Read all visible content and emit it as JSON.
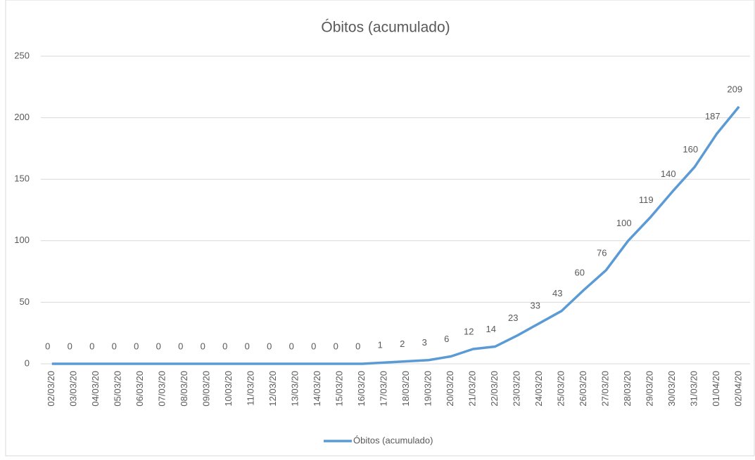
{
  "chart_data": {
    "type": "line",
    "title": "Óbitos (acumulado)",
    "categories": [
      "02/03/20",
      "03/03/20",
      "04/03/20",
      "05/03/20",
      "06/03/20",
      "07/03/20",
      "08/03/20",
      "09/03/20",
      "10/03/20",
      "11/03/20",
      "12/03/20",
      "13/03/20",
      "14/03/20",
      "15/03/20",
      "16/03/20",
      "17/03/20",
      "18/03/20",
      "19/03/20",
      "20/03/20",
      "21/03/20",
      "22/03/20",
      "23/03/20",
      "24/03/20",
      "25/03/20",
      "26/03/20",
      "27/03/20",
      "28/03/20",
      "29/03/20",
      "30/03/20",
      "31/03/20",
      "01/04/20",
      "02/04/20"
    ],
    "series": [
      {
        "name": "Óbitos (acumulado)",
        "color": "#5b9bd5",
        "values": [
          0,
          0,
          0,
          0,
          0,
          0,
          0,
          0,
          0,
          0,
          0,
          0,
          0,
          0,
          0,
          1,
          2,
          3,
          6,
          12,
          14,
          23,
          33,
          43,
          60,
          76,
          100,
          119,
          140,
          160,
          187,
          209
        ]
      }
    ],
    "ylim": [
      0,
      250
    ],
    "yticks": [
      0,
      50,
      100,
      150,
      200,
      250
    ],
    "grid": true,
    "legend": "bottom"
  }
}
